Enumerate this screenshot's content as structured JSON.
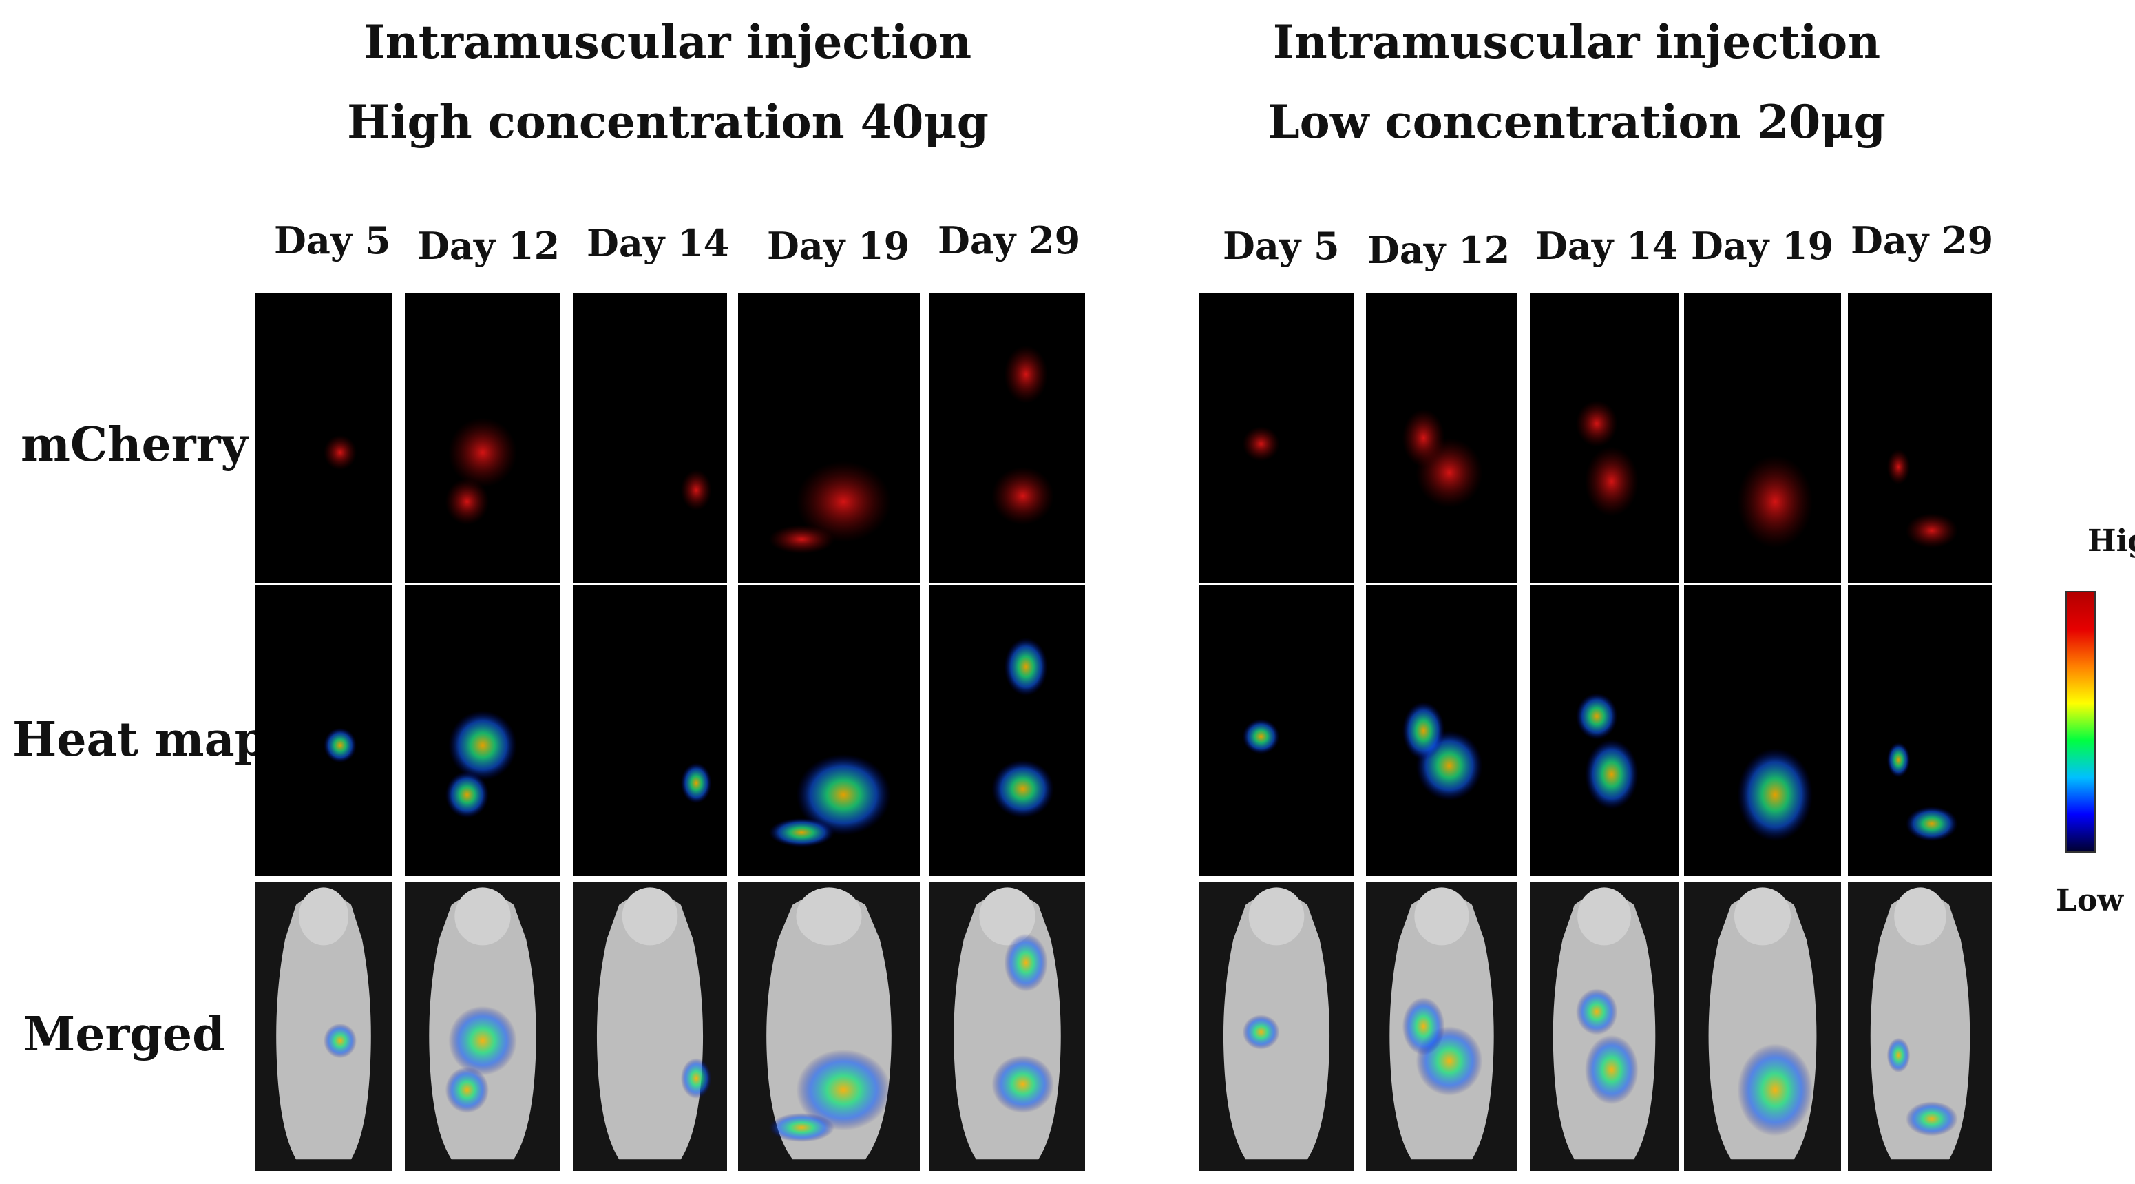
{
  "groups": [
    {
      "title_line1": "Intramuscular injection",
      "title_line2": "High concentration 40μg",
      "days": [
        "Day 5",
        "Day 12",
        "Day 14",
        "Day 19",
        "Day 29"
      ]
    },
    {
      "title_line1": "Intramuscular injection",
      "title_line2": "Low concentration 20μg",
      "days": [
        "Day 5",
        "Day 12",
        "Day 14",
        "Day 19",
        "Day 29"
      ]
    }
  ],
  "rows": [
    "mCherry",
    "Heat map",
    "Merged"
  ],
  "scale": {
    "high_label": "High",
    "low_label": "Low",
    "colors": [
      "#b30000",
      "#e60000",
      "#ff8000",
      "#ffff00",
      "#00ff40",
      "#00c0ff",
      "#0000ff",
      "#000030"
    ]
  },
  "colors": {
    "background": "#ffffff",
    "panel_background": "#000000",
    "mcherry_signal": "#d01010",
    "mouse_body": "#c8c8c8"
  }
}
